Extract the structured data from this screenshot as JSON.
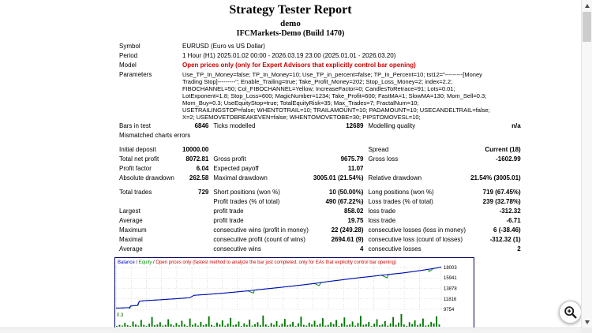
{
  "report": {
    "title": "Strategy Tester Report",
    "subtitle": "demo",
    "broker": "IFCMarkets-Demo (Build 1470)"
  },
  "info": {
    "symbol_label": "Symbol",
    "symbol_value": "EURUSD (Euro vs US Dollar)",
    "period_label": "Period",
    "period_value": "1 Hour (H1) 2025.01.02 00:00 - 2026.03.19 23:00 (2025.01.01 - 2026.03.20)",
    "model_label": "Model",
    "model_value": "Open prices only (only for Expert Advisors that explicitly control bar opening)",
    "parameters_label": "Parameters",
    "parameters_value": "Use_TP_In_Money=false; TP_In_Money=10; Use_TP_in_percent=false; TP_In_Percent=10; tst12=\"---------[Money Trading Stop]---------\"; Enable_Trailing=true; Take_Profit_Money=202; Stop_Loss_Money=2; index=2.2; FIBOCHANNEL=50; Col_FIBOCHANNEL=Yellow; IncreaseFactor=0; CandlesToRetrace=91; Lots=0.01; LotExponent=1.8; Stop_Loss=600; MagicNumber=1234; Take_Profit=600; FastMA=1; SlowMA=130; Mom_Sell=0.3; Mom_Buy=0.3; UseEquityStop=true; TotalEquityRisk=35; Max_Trades=7; FractalNum=10; USETRAILINGSTOP=false; WHENTOTRAIL=10; TRAILAMOUNT=10; PADAMOUNT=10; USECANDELTRAIL=false; X=2; USEMOVETOBREAKEVEN=false; WHENTOMOVETOBE=30; PIPSTOMOVESL=10;"
  },
  "stats": {
    "rows": [
      {
        "c": [
          "Bars in test",
          "6846",
          "Ticks modelled",
          "12689",
          "Modelling quality",
          "n/a"
        ]
      },
      {
        "c": [
          "Mismatched charts errors",
          "",
          "",
          "",
          "",
          ""
        ]
      },
      {
        "gap": true
      },
      {
        "c": [
          "Initial deposit",
          "10000.00",
          "",
          "",
          "Spread",
          "Current (18)"
        ]
      },
      {
        "c": [
          "Total net profit",
          "8072.81",
          "Gross profit",
          "9675.79",
          "Gross loss",
          "-1602.99"
        ]
      },
      {
        "c": [
          "Profit factor",
          "6.04",
          "Expected payoff",
          "11.07",
          "",
          ""
        ]
      },
      {
        "c": [
          "Absolute drawdown",
          "262.58",
          "Maximal drawdown",
          "3005.01 (21.54%)",
          "Relative drawdown",
          "21.54% (3005.01)"
        ]
      },
      {
        "gap": true
      },
      {
        "c": [
          "Total trades",
          "729",
          "Short positions (won %)",
          "10 (50.00%)",
          "Long positions (won %)",
          "719 (67.45%)"
        ]
      },
      {
        "c": [
          "",
          "",
          "Profit trades (% of total)",
          "490 (67.22%)",
          "Loss trades (% of total)",
          "239 (32.78%)"
        ]
      },
      {
        "c": [
          "Largest",
          "",
          "profit trade",
          "858.02",
          "loss trade",
          "-312.32"
        ]
      },
      {
        "c": [
          "Average",
          "",
          "profit trade",
          "19.75",
          "loss trade",
          "-6.71"
        ]
      },
      {
        "c": [
          "Maximum",
          "",
          "consecutive wins (profit in money)",
          "22 (249.28)",
          "consecutive losses (loss in money)",
          "6 (-38.46)"
        ]
      },
      {
        "c": [
          "Maximal",
          "",
          "consecutive profit (count of wins)",
          "2694.61 (9)",
          "consecutive loss (count of losses)",
          "-312.32 (1)"
        ]
      },
      {
        "c": [
          "Average",
          "",
          "consecutive wins",
          "4",
          "consecutive losses",
          "2"
        ]
      }
    ]
  },
  "chart_data": {
    "type": "line",
    "legend": {
      "balance": "Balance",
      "separator": " / ",
      "equity": "Equity",
      "note": "Open prices only (fastest method to analyze the bar just completed, only for EAs that explicitly control bar opening)"
    },
    "xlim": [
      0,
      729
    ],
    "ylim": [
      9754,
      18003
    ],
    "y_ticks": [
      18003,
      15941,
      13878,
      11816,
      9754
    ],
    "x_ticks": [
      0,
      34,
      68,
      102,
      136,
      170,
      204,
      238,
      272,
      306,
      340,
      374,
      408,
      442,
      476,
      510,
      544,
      578,
      612,
      646,
      680,
      729
    ],
    "balance_series": [
      [
        0,
        10000
      ],
      [
        12,
        10020
      ],
      [
        22,
        10060
      ],
      [
        30,
        10090
      ],
      [
        33,
        10420
      ],
      [
        42,
        10470
      ],
      [
        48,
        10520
      ],
      [
        52,
        11320
      ],
      [
        58,
        11400
      ],
      [
        68,
        11480
      ],
      [
        85,
        11560
      ],
      [
        100,
        11650
      ],
      [
        115,
        11730
      ],
      [
        130,
        11820
      ],
      [
        148,
        11930
      ],
      [
        165,
        12040
      ],
      [
        175,
        12520
      ],
      [
        190,
        12610
      ],
      [
        205,
        12700
      ],
      [
        220,
        12800
      ],
      [
        235,
        12900
      ],
      [
        250,
        13020
      ],
      [
        265,
        13140
      ],
      [
        280,
        13280
      ],
      [
        295,
        13400
      ],
      [
        310,
        13540
      ],
      [
        325,
        13680
      ],
      [
        340,
        13820
      ],
      [
        355,
        13960
      ],
      [
        370,
        14100
      ],
      [
        385,
        14240
      ],
      [
        400,
        14390
      ],
      [
        415,
        14540
      ],
      [
        430,
        14700
      ],
      [
        445,
        14860
      ],
      [
        460,
        15060
      ],
      [
        475,
        15230
      ],
      [
        490,
        15400
      ],
      [
        505,
        15560
      ],
      [
        520,
        15720
      ],
      [
        535,
        15880
      ],
      [
        550,
        16030
      ],
      [
        565,
        16180
      ],
      [
        580,
        16330
      ],
      [
        595,
        16480
      ],
      [
        610,
        16620
      ],
      [
        625,
        16760
      ],
      [
        640,
        16900
      ],
      [
        655,
        17060
      ],
      [
        670,
        17240
      ],
      [
        685,
        17440
      ],
      [
        700,
        17650
      ],
      [
        712,
        17830
      ],
      [
        722,
        17960
      ],
      [
        729,
        18073
      ]
    ],
    "equity_dips": [
      [
        31,
        9930
      ],
      [
        50,
        10640
      ],
      [
        308,
        12950
      ],
      [
        455,
        14420
      ],
      [
        608,
        15950
      ],
      [
        702,
        17230
      ]
    ],
    "lots_max_label": "0.3",
    "lots_max": 0.34,
    "lots_bars": [
      0.02,
      0.05,
      0.03,
      0.1,
      0.04,
      0.02,
      0.14,
      0.06,
      0.03,
      0.18,
      0.05,
      0.02,
      0.08,
      0.26,
      0.04,
      0.06,
      0.12,
      0.03,
      0.05,
      0.2,
      0.07,
      0.03,
      0.1,
      0.04,
      0.16,
      0.06,
      0.02,
      0.22,
      0.05,
      0.09,
      0.03,
      0.13,
      0.04,
      0.07,
      0.28,
      0.05,
      0.02,
      0.11,
      0.06,
      0.17,
      0.03,
      0.08,
      0.24,
      0.04,
      0.06,
      0.14,
      0.02,
      0.09,
      0.05,
      0.19,
      0.03,
      0.07,
      0.12,
      0.04,
      0.3,
      0.06,
      0.02,
      0.1,
      0.05,
      0.15,
      0.03,
      0.08,
      0.21,
      0.04,
      0.06,
      0.13,
      0.02,
      0.09,
      0.27,
      0.05,
      0.03,
      0.11,
      0.06,
      0.16,
      0.04,
      0.08,
      0.23,
      0.03,
      0.05,
      0.12,
      0.07,
      0.18,
      0.02,
      0.09,
      0.25,
      0.04,
      0.06,
      0.14,
      0.03,
      0.1,
      0.29,
      0.05,
      0.07,
      0.13,
      0.02,
      0.08,
      0.2,
      0.04,
      0.06,
      0.15,
      0.03,
      0.09,
      0.26,
      0.05,
      0.11,
      0.34,
      0.06,
      0.02,
      0.12,
      0.07,
      0.17,
      0.04,
      0.08,
      0.22,
      0.03,
      0.05,
      0.13,
      0.09,
      0.28,
      0.06
    ],
    "colors": {
      "balance": "#0000cc",
      "equity": "#009000",
      "note": "#cc0000",
      "bars": "#007800",
      "grid": "#c8c8c8",
      "border": "#000060"
    }
  }
}
